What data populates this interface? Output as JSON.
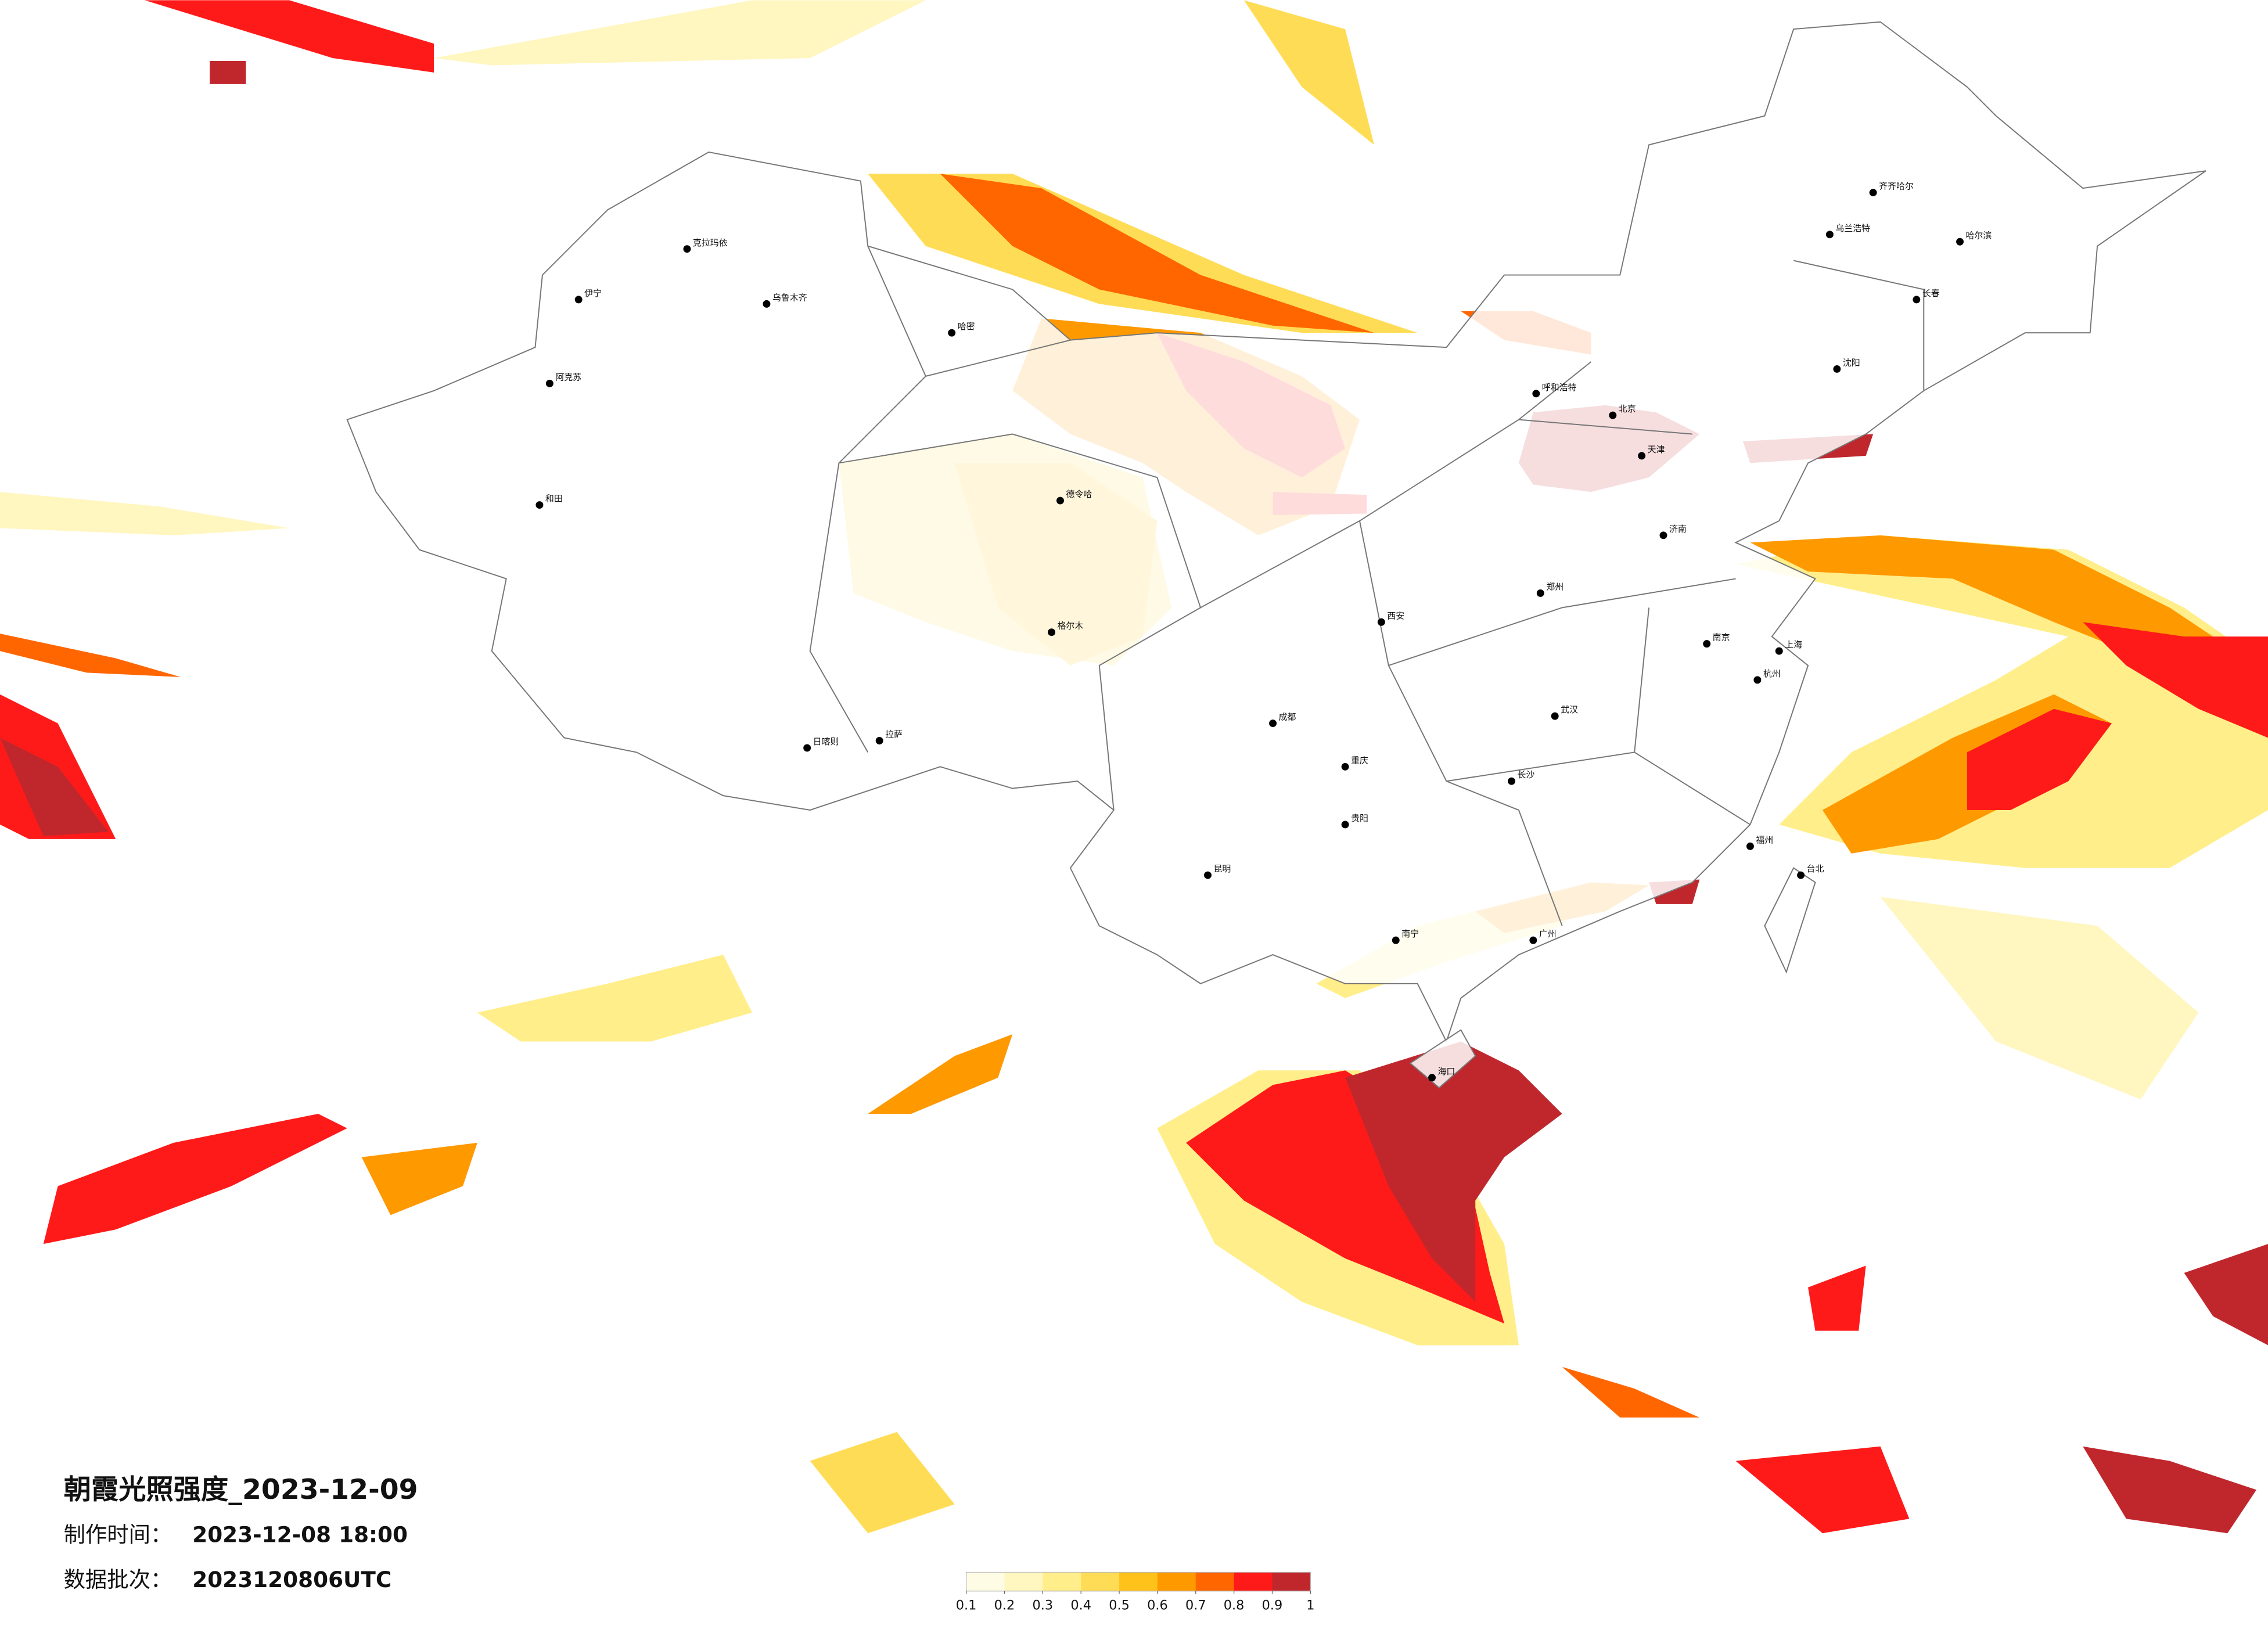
{
  "title": "朝霞光照强度_2023-12-09",
  "production_time": {
    "label": "制作时间：",
    "value": "2023-12-08 18:00"
  },
  "data_batch": {
    "label": "数据批次：",
    "value": "2023120806UTC"
  },
  "legend": {
    "colors": [
      "#fffce6",
      "#fff6c0",
      "#ffee8a",
      "#ffdc55",
      "#ffc21a",
      "#ff9900",
      "#ff6600",
      "#ff1a1a",
      "#c0272d"
    ],
    "ticks": [
      0.1,
      0.2,
      0.3,
      0.4,
      0.5,
      0.6,
      0.7,
      0.8,
      0.9,
      1
    ]
  },
  "cities": [
    "克拉玛依",
    "乌鲁木齐",
    "伊宁",
    "阿克苏",
    "和田",
    "哈密",
    "拉萨",
    "日喀则",
    "德令哈",
    "格尔木",
    "呼和浩特",
    "北京",
    "天津",
    "哈尔滨",
    "长春",
    "沈阳",
    "济南",
    "上海",
    "南京",
    "武汉",
    "长沙",
    "广州",
    "重庆",
    "成都",
    "昆明",
    "贵阳",
    "南宁",
    "海口",
    "台北",
    "西安",
    "郑州",
    "福州",
    "杭州",
    "齐齐哈尔",
    "乌兰浩特"
  ]
}
